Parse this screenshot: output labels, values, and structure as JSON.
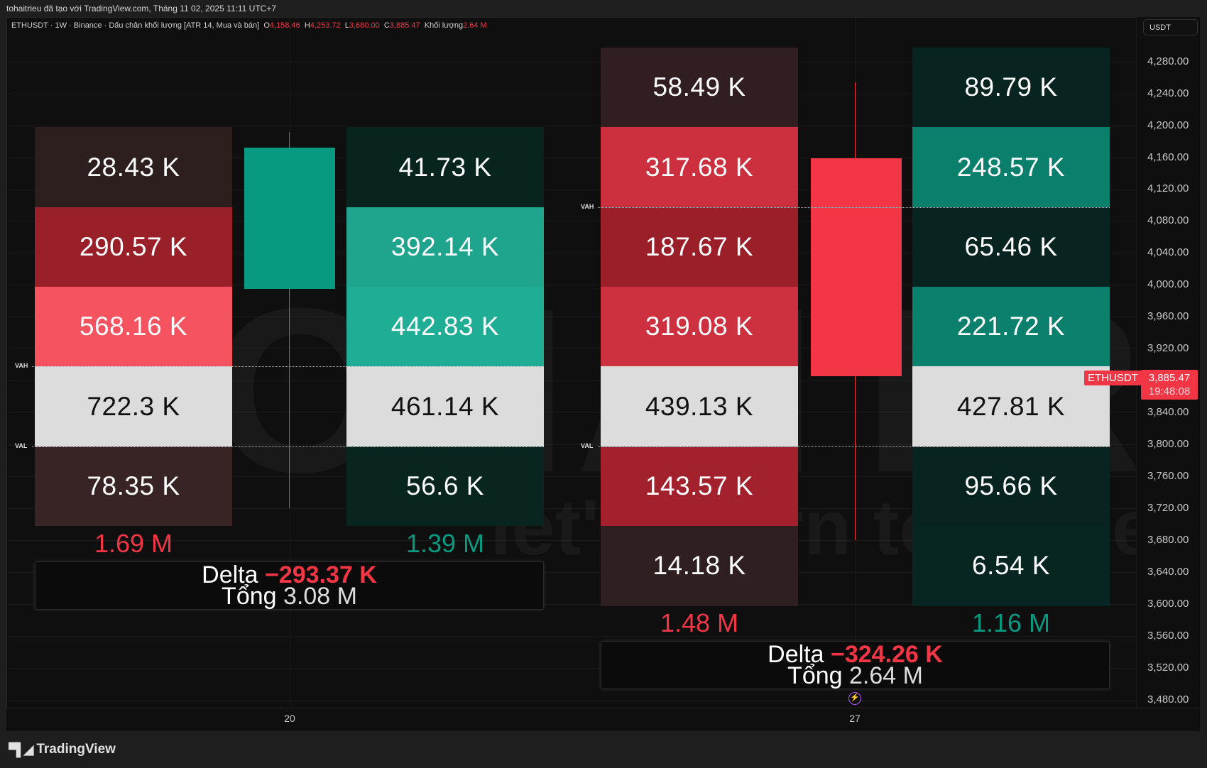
{
  "header": {
    "creator_line": "tohaitrieu đã tạo với TradingView.com, Tháng 11 02, 2025 11:11 UTC+7"
  },
  "legend": {
    "symbol": "ETHUSDT · 1W · Binance · Dấu chân khối lượng [ATR 14, Mua và bán]",
    "o_label": "O",
    "o": "4,158.46",
    "h_label": "H",
    "h": "4,253.72",
    "l_label": "L",
    "l": "3,680.00",
    "c_label": "C",
    "c": "3,885.47",
    "vol_label": "Khối lượng",
    "vol": "2.64 M"
  },
  "axis": {
    "currency": "USDT",
    "ticks": [
      "4,280.00",
      "4,240.00",
      "4,200.00",
      "4,160.00",
      "4,120.00",
      "4,080.00",
      "4,040.00",
      "4,000.00",
      "3,960.00",
      "3,920.00",
      "3,880.00",
      "3,840.00",
      "3,800.00",
      "3,760.00",
      "3,720.00",
      "3,680.00",
      "3,640.00",
      "3,600.00",
      "3,560.00",
      "3,520.00",
      "3,480.00"
    ],
    "last_symbol": "ETHUSDT",
    "last_price": "3,885.47",
    "countdown": "19:48:08"
  },
  "time_axis": [
    "20",
    "27"
  ],
  "colors": {
    "up": "#089981",
    "down": "#f23645",
    "poc": "#dcdcdc"
  },
  "groups": [
    {
      "sell": [
        {
          "v": "28.43 K",
          "c": "#2e1f1f"
        },
        {
          "v": "290.57 K",
          "c": "#991f29"
        },
        {
          "v": "568.16 K",
          "c": "#f5535f"
        },
        {
          "v": "722.3 K",
          "c": "#dcdcdc"
        },
        {
          "v": "78.35 K",
          "c": "#382424"
        }
      ],
      "buy": [
        {
          "v": "41.73 K",
          "c": "#08241f"
        },
        {
          "v": "392.14 K",
          "c": "#1fa58e"
        },
        {
          "v": "442.83 K",
          "c": "#20ad95"
        },
        {
          "v": "461.14 K",
          "c": "#dcdcdc"
        },
        {
          "v": "56.6 K",
          "c": "#082520"
        }
      ],
      "sell_total": "1.69 M",
      "buy_total": "1.39 M",
      "delta_label": "Delta",
      "delta": "−293.37 K",
      "total_label": "Tổng",
      "total": "3.08 M",
      "vah": "VAH",
      "val": "VAL",
      "candle": {
        "open": 3995,
        "close": 4172,
        "high": 4192,
        "low": 3720,
        "dir": "up"
      }
    },
    {
      "sell": [
        {
          "v": "58.49 K",
          "c": "#311e20"
        },
        {
          "v": "317.68 K",
          "c": "#cc2f3d"
        },
        {
          "v": "187.67 K",
          "c": "#9a1f29"
        },
        {
          "v": "319.08 K",
          "c": "#cd303e"
        },
        {
          "v": "439.13 K",
          "c": "#dcdcdc"
        },
        {
          "v": "143.57 K",
          "c": "#a3212d"
        },
        {
          "v": "14.18 K",
          "c": "#2f1f20"
        }
      ],
      "buy": [
        {
          "v": "89.79 K",
          "c": "#072420"
        },
        {
          "v": "248.57 K",
          "c": "#0a806c"
        },
        {
          "v": "65.46 K",
          "c": "#072420"
        },
        {
          "v": "221.72 K",
          "c": "#0b806d"
        },
        {
          "v": "427.81 K",
          "c": "#dcdcdc"
        },
        {
          "v": "95.66 K",
          "c": "#072420"
        },
        {
          "v": "6.54 K",
          "c": "#072621"
        }
      ],
      "sell_total": "1.48 M",
      "buy_total": "1.16 M",
      "delta_label": "Delta",
      "delta": "−324.26 K",
      "total_label": "Tổng",
      "total": "2.64 M",
      "vah": "VAH",
      "val": "VAL",
      "candle": {
        "open": 4158.46,
        "close": 3885.47,
        "high": 4253.72,
        "low": 3680,
        "dir": "down"
      }
    }
  ],
  "watermark": {
    "title": "TOHAITRIEU",
    "tagline": "let's learn together"
  },
  "footer": {
    "brand": "TradingView"
  }
}
